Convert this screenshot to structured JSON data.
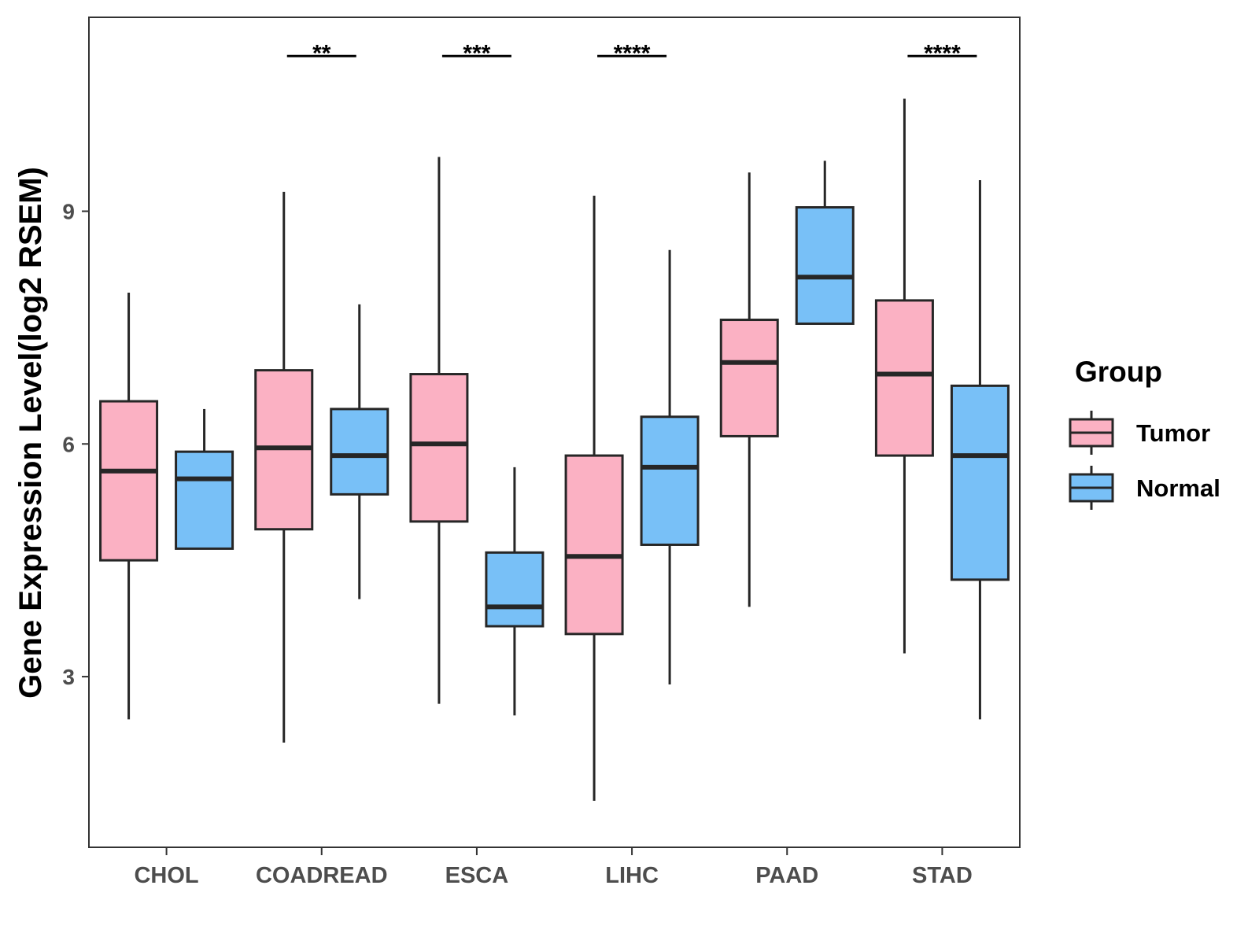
{
  "chart_data": {
    "type": "boxplot",
    "ylabel": "Gene Expression Level(log2 RSEM)",
    "xlabel": "",
    "ylim": [
      0.8,
      11.5
    ],
    "yticks": [
      3,
      6,
      9
    ],
    "categories": [
      "CHOL",
      "COADREAD",
      "ESCA",
      "LIHC",
      "PAAD",
      "STAD"
    ],
    "series": [
      {
        "name": "Tumor",
        "color": "#FBB1C3",
        "boxes": [
          {
            "category": "CHOL",
            "min": 2.45,
            "q1": 4.5,
            "median": 5.65,
            "q3": 6.55,
            "max": 7.95
          },
          {
            "category": "COADREAD",
            "min": 2.15,
            "q1": 4.9,
            "median": 5.95,
            "q3": 6.95,
            "max": 9.25
          },
          {
            "category": "ESCA",
            "min": 2.65,
            "q1": 5.0,
            "median": 6.0,
            "q3": 6.9,
            "max": 9.7
          },
          {
            "category": "LIHC",
            "min": 1.4,
            "q1": 3.55,
            "median": 4.55,
            "q3": 5.85,
            "max": 9.2
          },
          {
            "category": "PAAD",
            "min": 3.9,
            "q1": 6.1,
            "median": 7.05,
            "q3": 7.6,
            "max": 9.5
          },
          {
            "category": "STAD",
            "min": 3.3,
            "q1": 5.85,
            "median": 6.9,
            "q3": 7.85,
            "max": 10.45
          }
        ]
      },
      {
        "name": "Normal",
        "color": "#78C0F7",
        "boxes": [
          {
            "category": "CHOL",
            "min": 4.65,
            "q1": 4.65,
            "median": 5.55,
            "q3": 5.9,
            "max": 6.45
          },
          {
            "category": "COADREAD",
            "min": 4.0,
            "q1": 5.35,
            "median": 5.85,
            "q3": 6.45,
            "max": 7.8
          },
          {
            "category": "ESCA",
            "min": 2.5,
            "q1": 3.65,
            "median": 3.9,
            "q3": 4.6,
            "max": 5.7
          },
          {
            "category": "LIHC",
            "min": 2.9,
            "q1": 4.7,
            "median": 5.7,
            "q3": 6.35,
            "max": 8.5
          },
          {
            "category": "PAAD",
            "min": 7.55,
            "q1": 7.55,
            "median": 8.15,
            "q3": 9.05,
            "max": 9.65
          },
          {
            "category": "STAD",
            "min": 2.45,
            "q1": 4.25,
            "median": 5.85,
            "q3": 6.75,
            "max": 9.4
          }
        ]
      }
    ],
    "annotations": [
      {
        "category": "COADREAD",
        "label": "**",
        "y": 11.0
      },
      {
        "category": "ESCA",
        "label": "***",
        "y": 11.0
      },
      {
        "category": "LIHC",
        "label": "****",
        "y": 11.0
      },
      {
        "category": "STAD",
        "label": "****",
        "y": 11.0
      }
    ],
    "legend": {
      "title": "Group",
      "position": "right",
      "items": [
        {
          "label": "Tumor",
          "color": "#FBB1C3"
        },
        {
          "label": "Normal",
          "color": "#78C0F7"
        }
      ]
    }
  }
}
